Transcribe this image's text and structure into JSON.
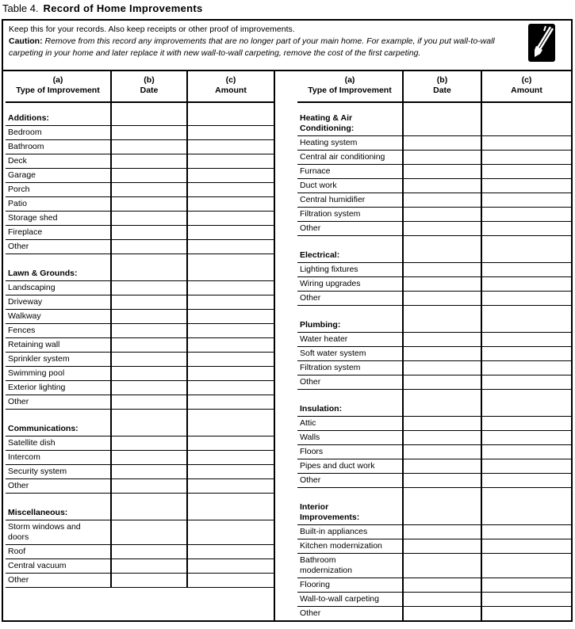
{
  "title": {
    "prefix": "Table 4.",
    "main": "Record of Home Improvements"
  },
  "intro": {
    "line1": "Keep this for your records. Also keep receipts or other proof of improvements.",
    "caution_label": "Caution:",
    "caution_text": "Remove from this record any improvements that are no longer part of your main home. For example, if you put wall-to-wall carpeting in your home and later replace it with new wall-to-wall carpeting, remove the cost of the first carpeting.",
    "icon": "pencil-icon"
  },
  "columns": [
    {
      "letter": "(a)",
      "label": "Type of Improvement"
    },
    {
      "letter": "(b)",
      "label": "Date"
    },
    {
      "letter": "(c)",
      "label": "Amount"
    }
  ],
  "left": [
    {
      "type": "header",
      "label": "Additions:"
    },
    {
      "type": "item",
      "label": "Bedroom"
    },
    {
      "type": "item",
      "label": "Bathroom"
    },
    {
      "type": "item",
      "label": "Deck"
    },
    {
      "type": "item",
      "label": "Garage"
    },
    {
      "type": "item",
      "label": "Porch"
    },
    {
      "type": "item",
      "label": "Patio"
    },
    {
      "type": "item",
      "label": "Storage shed"
    },
    {
      "type": "item",
      "label": "Fireplace"
    },
    {
      "type": "item",
      "label": "Other"
    },
    {
      "type": "header",
      "label": "Lawn & Grounds:"
    },
    {
      "type": "item",
      "label": "Landscaping"
    },
    {
      "type": "item",
      "label": "Driveway"
    },
    {
      "type": "item",
      "label": "Walkway"
    },
    {
      "type": "item",
      "label": "Fences"
    },
    {
      "type": "item",
      "label": "Retaining wall"
    },
    {
      "type": "item",
      "label": "Sprinkler system"
    },
    {
      "type": "item",
      "label": "Swimming pool"
    },
    {
      "type": "item",
      "label": "Exterior lighting"
    },
    {
      "type": "item",
      "label": "Other"
    },
    {
      "type": "header",
      "label": "Communications:"
    },
    {
      "type": "item",
      "label": "Satellite dish"
    },
    {
      "type": "item",
      "label": "Intercom"
    },
    {
      "type": "item",
      "label": "Security system"
    },
    {
      "type": "item",
      "label": "Other"
    },
    {
      "type": "header",
      "label": "Miscellaneous:"
    },
    {
      "type": "item",
      "label": "Storm windows and\ndoors"
    },
    {
      "type": "item",
      "label": "Roof"
    },
    {
      "type": "item",
      "label": "Central vacuum"
    },
    {
      "type": "item",
      "label": "Other"
    }
  ],
  "right": [
    {
      "type": "header",
      "label": "Heating & Air\nConditioning:"
    },
    {
      "type": "item",
      "label": "Heating system"
    },
    {
      "type": "item",
      "label": "Central air conditioning"
    },
    {
      "type": "item",
      "label": "Furnace"
    },
    {
      "type": "item",
      "label": "Duct work"
    },
    {
      "type": "item",
      "label": "Central humidifier"
    },
    {
      "type": "item",
      "label": "Filtration system"
    },
    {
      "type": "item",
      "label": "Other"
    },
    {
      "type": "header",
      "label": "Electrical:"
    },
    {
      "type": "item",
      "label": "Lighting fixtures"
    },
    {
      "type": "item",
      "label": "Wiring upgrades"
    },
    {
      "type": "item",
      "label": "Other"
    },
    {
      "type": "header",
      "label": "Plumbing:"
    },
    {
      "type": "item",
      "label": "Water heater"
    },
    {
      "type": "item",
      "label": "Soft water system"
    },
    {
      "type": "item",
      "label": "Filtration system"
    },
    {
      "type": "item",
      "label": "Other"
    },
    {
      "type": "header",
      "label": "Insulation:"
    },
    {
      "type": "item",
      "label": "Attic"
    },
    {
      "type": "item",
      "label": "Walls"
    },
    {
      "type": "item",
      "label": "Floors"
    },
    {
      "type": "item",
      "label": "Pipes and duct work"
    },
    {
      "type": "item",
      "label": "Other"
    },
    {
      "type": "header",
      "label": "Interior\nImprovements:"
    },
    {
      "type": "item",
      "label": "Built-in appliances"
    },
    {
      "type": "item",
      "label": "Kitchen modernization"
    },
    {
      "type": "item",
      "label": "Bathroom\nmodernization"
    },
    {
      "type": "item",
      "label": "Flooring"
    },
    {
      "type": "item",
      "label": "Wall-to-wall carpeting"
    },
    {
      "type": "item",
      "label": "Other"
    }
  ]
}
